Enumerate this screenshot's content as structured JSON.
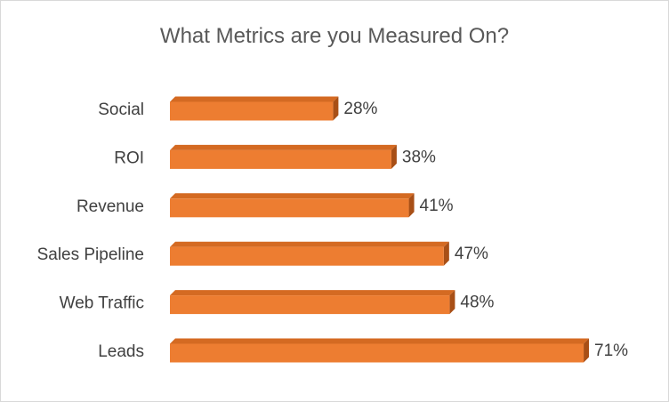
{
  "chart_data": {
    "type": "bar",
    "orientation": "horizontal",
    "style": "3d",
    "title": "What Metrics are you Measured On?",
    "categories": [
      "Social",
      "ROI",
      "Revenue",
      "Sales Pipeline",
      "Web Traffic",
      "Leads"
    ],
    "values": [
      28,
      38,
      41,
      47,
      48,
      71
    ],
    "value_labels": [
      "28%",
      "38%",
      "41%",
      "47%",
      "48%",
      "71%"
    ],
    "unit": "%",
    "xlim": [
      0,
      100
    ],
    "grid": false,
    "legend": "none"
  },
  "colors": {
    "bar_front": "#ed7d31",
    "bar_top": "#d46a22",
    "bar_side": "#a84f16"
  }
}
